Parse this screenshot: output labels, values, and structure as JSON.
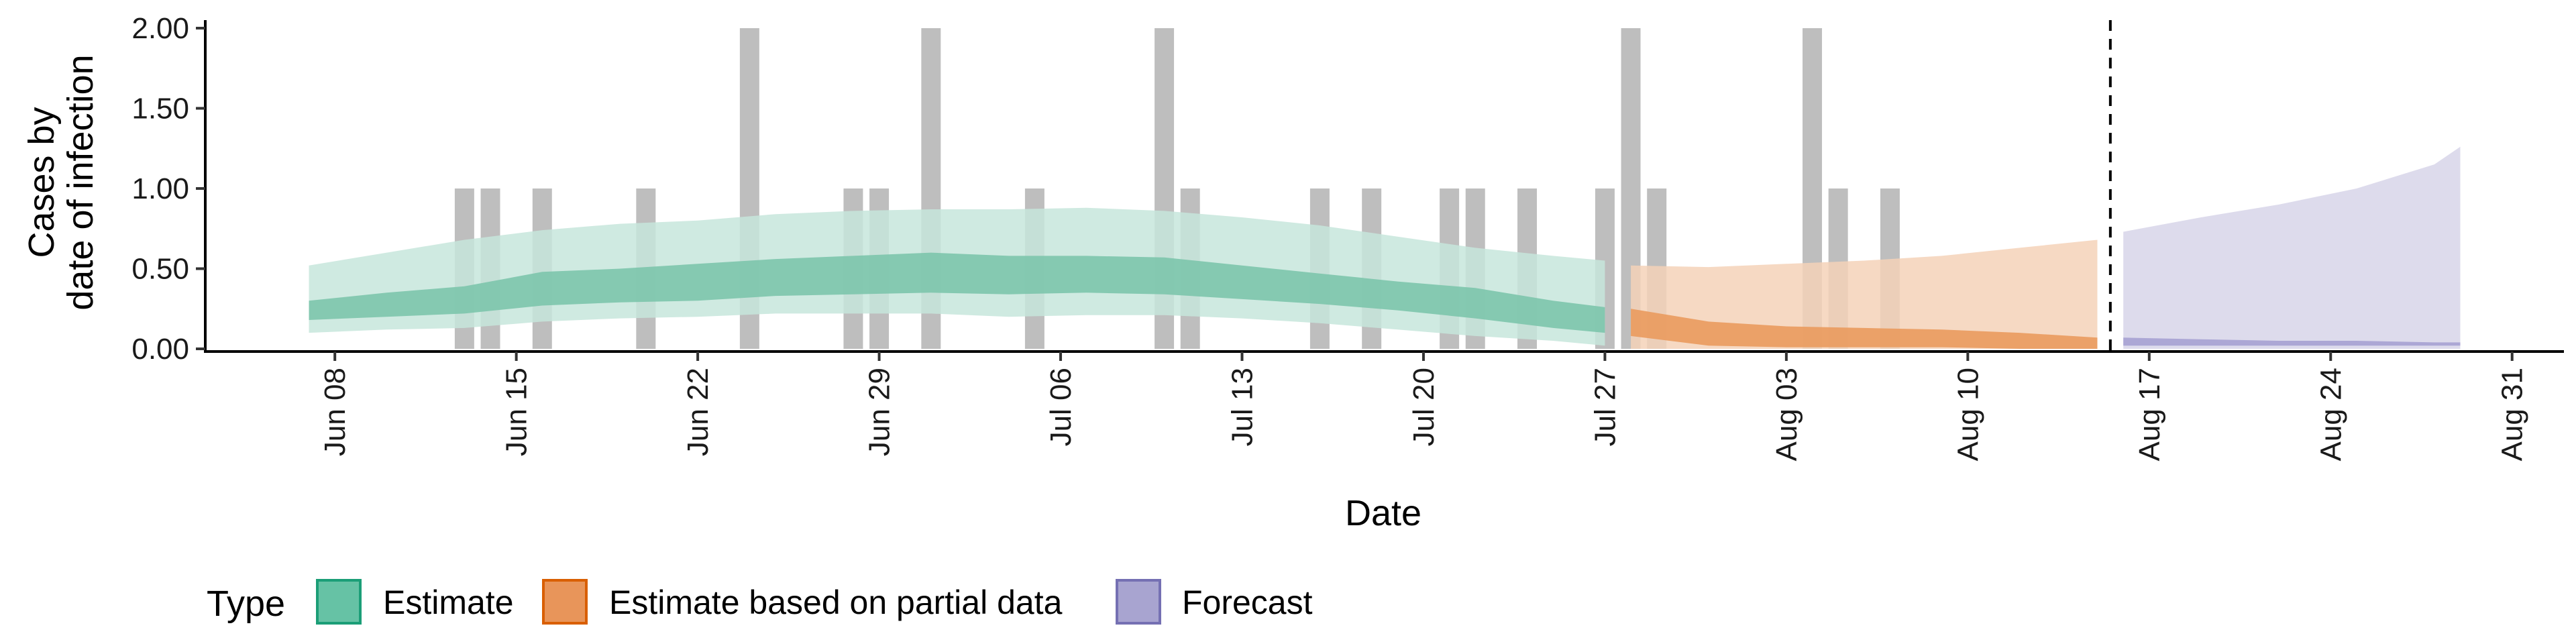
{
  "chart_data": {
    "type": "area",
    "xlabel": "Date",
    "ylabel": [
      "Cases by",
      "date of infection"
    ],
    "y_ticks": [
      "0.00",
      "0.50",
      "1.00",
      "1.50",
      "2.00"
    ],
    "y_tick_values": [
      0,
      0.5,
      1.0,
      1.5,
      2.0
    ],
    "ylim": [
      0,
      2.05
    ],
    "x_ticks": [
      {
        "date": "2020-06-08",
        "label": "Jun 08"
      },
      {
        "date": "2020-06-15",
        "label": "Jun 15"
      },
      {
        "date": "2020-06-22",
        "label": "Jun 22"
      },
      {
        "date": "2020-06-29",
        "label": "Jun 29"
      },
      {
        "date": "2020-07-06",
        "label": "Jul 06"
      },
      {
        "date": "2020-07-13",
        "label": "Jul 13"
      },
      {
        "date": "2020-07-20",
        "label": "Jul 20"
      },
      {
        "date": "2020-07-27",
        "label": "Jul 27"
      },
      {
        "date": "2020-08-03",
        "label": "Aug 03"
      },
      {
        "date": "2020-08-10",
        "label": "Aug 10"
      },
      {
        "date": "2020-08-17",
        "label": "Aug 17"
      },
      {
        "date": "2020-08-24",
        "label": "Aug 24"
      },
      {
        "date": "2020-08-31",
        "label": "Aug 31"
      }
    ],
    "xlim": [
      "2020-06-03",
      "2020-09-02"
    ],
    "grid": false,
    "legend": {
      "title": "Type",
      "position": "bottom",
      "items": [
        {
          "label": "Estimate",
          "fill": "#66c2a5",
          "stroke": "#1b9e77"
        },
        {
          "label": "Estimate based on partial data",
          "fill": "#e8955a",
          "stroke": "#d95f02"
        },
        {
          "label": "Forecast",
          "fill": "#a8a4d0",
          "stroke": "#7570b3"
        }
      ]
    },
    "colors": {
      "estimate_outer": "#c7e6dc",
      "estimate_inner": "#7cc5ac",
      "partial_outer": "#f5d2b8",
      "partial_inner": "#ea9a5e",
      "forecast_outer": "#d9d7ea",
      "forecast_inner": "#a9a4d4",
      "bars": "#bebebe"
    },
    "forecast_start": "2020-08-15",
    "reported_cases": [
      {
        "date": "2020-06-13",
        "value": 1
      },
      {
        "date": "2020-06-14",
        "value": 1
      },
      {
        "date": "2020-06-16",
        "value": 1
      },
      {
        "date": "2020-06-20",
        "value": 1
      },
      {
        "date": "2020-06-24",
        "value": 2
      },
      {
        "date": "2020-06-28",
        "value": 1
      },
      {
        "date": "2020-06-29",
        "value": 1
      },
      {
        "date": "2020-07-01",
        "value": 2
      },
      {
        "date": "2020-07-05",
        "value": 1
      },
      {
        "date": "2020-07-10",
        "value": 2
      },
      {
        "date": "2020-07-11",
        "value": 1
      },
      {
        "date": "2020-07-16",
        "value": 1
      },
      {
        "date": "2020-07-18",
        "value": 1
      },
      {
        "date": "2020-07-21",
        "value": 1
      },
      {
        "date": "2020-07-22",
        "value": 1
      },
      {
        "date": "2020-07-24",
        "value": 1
      },
      {
        "date": "2020-07-27",
        "value": 1
      },
      {
        "date": "2020-07-28",
        "value": 2
      },
      {
        "date": "2020-07-29",
        "value": 1
      },
      {
        "date": "2020-08-04",
        "value": 2
      },
      {
        "date": "2020-08-05",
        "value": 1
      },
      {
        "date": "2020-08-07",
        "value": 1
      }
    ],
    "estimate": {
      "dates": [
        "2020-06-07",
        "2020-06-10",
        "2020-06-13",
        "2020-06-16",
        "2020-06-19",
        "2020-06-22",
        "2020-06-25",
        "2020-06-28",
        "2020-07-01",
        "2020-07-04",
        "2020-07-07",
        "2020-07-10",
        "2020-07-13",
        "2020-07-16",
        "2020-07-19",
        "2020-07-22",
        "2020-07-25",
        "2020-07-27"
      ],
      "outer_low": [
        0.1,
        0.12,
        0.13,
        0.17,
        0.19,
        0.2,
        0.22,
        0.22,
        0.22,
        0.2,
        0.21,
        0.21,
        0.19,
        0.16,
        0.12,
        0.08,
        0.05,
        0.02
      ],
      "outer_high": [
        0.52,
        0.6,
        0.68,
        0.74,
        0.78,
        0.8,
        0.84,
        0.86,
        0.87,
        0.87,
        0.88,
        0.86,
        0.82,
        0.77,
        0.7,
        0.63,
        0.58,
        0.55
      ],
      "inner_low": [
        0.18,
        0.2,
        0.22,
        0.27,
        0.29,
        0.3,
        0.33,
        0.34,
        0.35,
        0.34,
        0.35,
        0.34,
        0.31,
        0.28,
        0.24,
        0.19,
        0.13,
        0.1
      ],
      "inner_high": [
        0.3,
        0.35,
        0.39,
        0.48,
        0.5,
        0.53,
        0.56,
        0.58,
        0.6,
        0.58,
        0.58,
        0.57,
        0.52,
        0.47,
        0.42,
        0.38,
        0.3,
        0.26
      ]
    },
    "partial": {
      "dates": [
        "2020-07-28",
        "2020-07-31",
        "2020-08-03",
        "2020-08-06",
        "2020-08-09",
        "2020-08-12",
        "2020-08-15"
      ],
      "outer_low": [
        0.0,
        0.0,
        0.0,
        0.0,
        0.0,
        0.0,
        0.0
      ],
      "outer_high": [
        0.52,
        0.51,
        0.53,
        0.55,
        0.58,
        0.63,
        0.68
      ],
      "inner_low": [
        0.08,
        0.02,
        0.01,
        0.01,
        0.01,
        0.0,
        0.0
      ],
      "inner_high": [
        0.25,
        0.17,
        0.14,
        0.13,
        0.12,
        0.1,
        0.07
      ]
    },
    "forecast": {
      "dates": [
        "2020-08-16",
        "2020-08-19",
        "2020-08-22",
        "2020-08-25",
        "2020-08-28",
        "2020-08-29"
      ],
      "outer_low": [
        0.0,
        0.0,
        0.0,
        0.0,
        0.0,
        0.0
      ],
      "outer_high": [
        0.73,
        0.82,
        0.9,
        1.0,
        1.15,
        1.26
      ],
      "inner_low": [
        0.02,
        0.02,
        0.02,
        0.02,
        0.02,
        0.02
      ],
      "inner_high": [
        0.07,
        0.06,
        0.05,
        0.05,
        0.04,
        0.04
      ]
    }
  }
}
